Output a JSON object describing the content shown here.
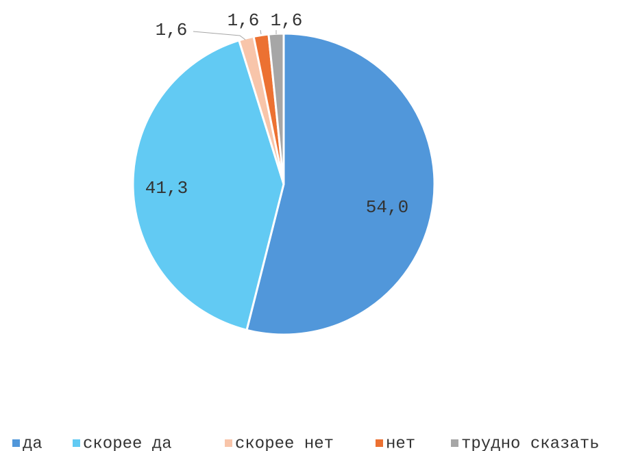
{
  "chart_data": {
    "type": "pie",
    "categories": [
      "да",
      "скорее да",
      "скорее нет",
      "нет",
      "трудно сказать"
    ],
    "values": [
      54.0,
      41.3,
      1.6,
      1.6,
      1.6
    ],
    "value_labels": [
      "54,0",
      "41,3",
      "1,6",
      "1,6",
      "1,6"
    ],
    "colors": [
      "#5197da",
      "#62caf3",
      "#f8c5aa",
      "#ec7132",
      "#a6a6a6"
    ],
    "legend": "bottom"
  }
}
